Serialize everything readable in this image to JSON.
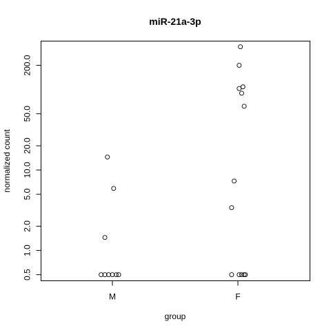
{
  "chart_data": {
    "type": "scatter",
    "title": "miR-21a-3p",
    "xlabel": "group",
    "ylabel": "normalized count",
    "y_scale": "log",
    "ylim": [
      0.42,
      400
    ],
    "yticks": [
      0.5,
      1.0,
      2.0,
      5.0,
      10.0,
      20.0,
      50.0,
      200.0
    ],
    "ytick_labels": [
      "0.5",
      "1.0",
      "2.0",
      "5.0",
      "10.0",
      "20.0",
      "50.0",
      "200.0"
    ],
    "categories": [
      "M",
      "F"
    ],
    "points": [
      {
        "group": "M",
        "jitter": -0.04,
        "y": 14.5
      },
      {
        "group": "M",
        "jitter": 0.01,
        "y": 5.9
      },
      {
        "group": "M",
        "jitter": -0.06,
        "y": 1.45
      },
      {
        "group": "M",
        "jitter": -0.09,
        "y": 0.5
      },
      {
        "group": "M",
        "jitter": -0.06,
        "y": 0.5
      },
      {
        "group": "M",
        "jitter": -0.03,
        "y": 0.5
      },
      {
        "group": "M",
        "jitter": 0.0,
        "y": 0.5
      },
      {
        "group": "M",
        "jitter": 0.03,
        "y": 0.5
      },
      {
        "group": "M",
        "jitter": 0.05,
        "y": 0.5
      },
      {
        "group": "F",
        "jitter": 0.02,
        "y": 340
      },
      {
        "group": "F",
        "jitter": 0.01,
        "y": 200
      },
      {
        "group": "F",
        "jitter": 0.04,
        "y": 108
      },
      {
        "group": "F",
        "jitter": 0.01,
        "y": 103
      },
      {
        "group": "F",
        "jitter": 0.03,
        "y": 90
      },
      {
        "group": "F",
        "jitter": 0.05,
        "y": 62
      },
      {
        "group": "F",
        "jitter": -0.03,
        "y": 7.3
      },
      {
        "group": "F",
        "jitter": -0.05,
        "y": 3.4
      },
      {
        "group": "F",
        "jitter": -0.05,
        "y": 0.5
      },
      {
        "group": "F",
        "jitter": 0.01,
        "y": 0.5
      },
      {
        "group": "F",
        "jitter": 0.03,
        "y": 0.5
      },
      {
        "group": "F",
        "jitter": 0.05,
        "y": 0.5
      },
      {
        "group": "F",
        "jitter": 0.06,
        "y": 0.5
      }
    ],
    "grid": false,
    "legend": "none"
  }
}
